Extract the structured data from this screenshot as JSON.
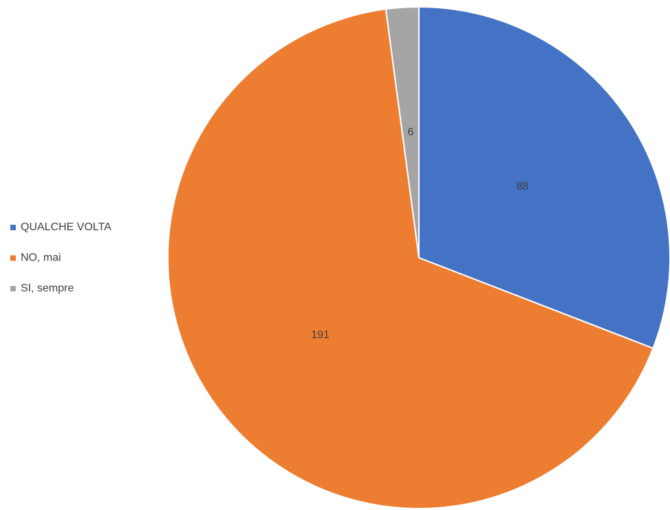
{
  "chart_data": {
    "type": "pie",
    "categories": [
      "QUALCHE VOLTA",
      "NO, mai",
      "SI, sempre"
    ],
    "values": [
      88,
      191,
      6
    ],
    "colors": [
      "#4472c4",
      "#ed7d31",
      "#a5a5a5"
    ],
    "legend": "left"
  }
}
